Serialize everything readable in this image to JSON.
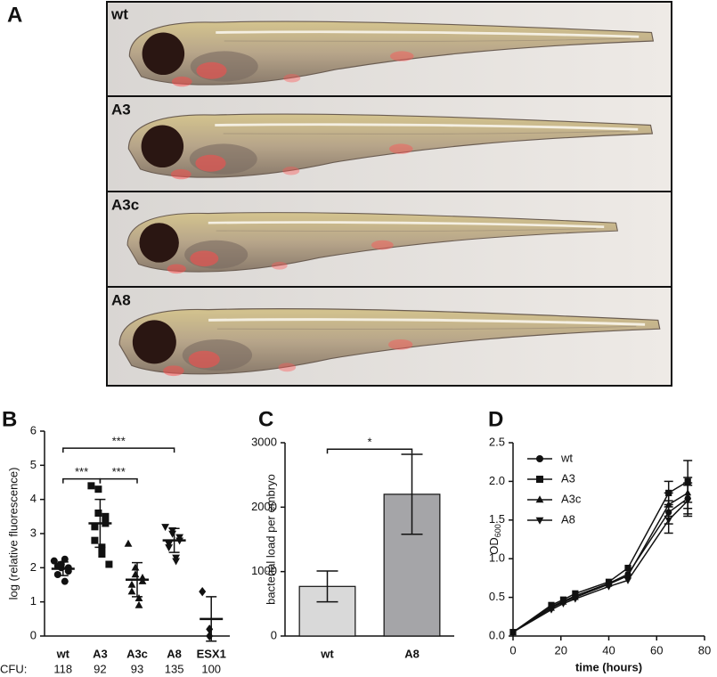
{
  "panel_labels": [
    "A",
    "B",
    "C",
    "D"
  ],
  "images": [
    {
      "label": "wt"
    },
    {
      "label": "A3"
    },
    {
      "label": "A3c"
    },
    {
      "label": "A8"
    }
  ],
  "chart_data": [
    {
      "type": "scatter",
      "ylabel": "log (relative fluorescence)",
      "categories": [
        "wt",
        "A3",
        "A3c",
        "A8",
        "ESX1"
      ],
      "markers": [
        "circle",
        "square",
        "triangle",
        "triangle-down",
        "diamond"
      ],
      "groups": [
        {
          "points": [
            2.2,
            2.1,
            2.0,
            1.9,
            2.0,
            1.8,
            2.05,
            1.6,
            2.25
          ],
          "mean": 1.97,
          "sd": 0.2
        },
        {
          "points": [
            4.4,
            4.3,
            3.6,
            3.5,
            3.3,
            3.2,
            2.8,
            2.6,
            2.4,
            2.1
          ],
          "mean": 3.3,
          "sd": 0.7
        },
        {
          "points": [
            2.7,
            2.0,
            1.8,
            1.7,
            1.6,
            1.5,
            1.3,
            1.1,
            0.9
          ],
          "mean": 1.65,
          "sd": 0.5
        },
        {
          "points": [
            3.2,
            3.1,
            3.0,
            2.9,
            2.8,
            2.7,
            2.6,
            2.3,
            2.2
          ],
          "mean": 2.8,
          "sd": 0.35
        },
        {
          "points": [
            1.3,
            0.2,
            0.0
          ],
          "mean": 0.5,
          "sd": 0.65
        }
      ],
      "ylim": [
        0,
        6
      ],
      "yticks": [
        0,
        1,
        2,
        3,
        4,
        5,
        6
      ],
      "brackets": [
        {
          "from": 0,
          "to": 3,
          "y": 5.5,
          "label": "***"
        },
        {
          "from": 0,
          "to": 1,
          "y": 4.6,
          "label": "***"
        },
        {
          "from": 1,
          "to": 2,
          "y": 4.6,
          "label": "***"
        }
      ],
      "cfu": {
        "label": "CFU:",
        "values": [
          118,
          92,
          93,
          135,
          100
        ]
      }
    },
    {
      "type": "bar",
      "ylabel": "bacterial load per embryo",
      "categories": [
        "wt",
        "A8"
      ],
      "values": [
        770,
        2200
      ],
      "errors": [
        240,
        620
      ],
      "colors": [
        "#d9d9d9",
        "#a5a5a8"
      ],
      "ylim": [
        0,
        3000
      ],
      "yticks": [
        0,
        1000,
        2000,
        3000
      ],
      "brackets": [
        {
          "from": 0,
          "to": 1,
          "y": 2900,
          "label": "*"
        }
      ]
    },
    {
      "type": "line",
      "xlabel": "time (hours)",
      "ylabel": {
        "main": "OD",
        "sub": "600"
      },
      "x": [
        0,
        16,
        21,
        26,
        40,
        48,
        65,
        73
      ],
      "series": [
        {
          "name": "wt",
          "marker": "circle",
          "values": [
            0.05,
            0.38,
            0.45,
            0.52,
            0.68,
            0.8,
            1.6,
            1.78
          ],
          "errors": [
            null,
            null,
            null,
            null,
            null,
            null,
            0.15,
            0.2
          ]
        },
        {
          "name": "A3",
          "marker": "square",
          "values": [
            0.05,
            0.4,
            0.47,
            0.55,
            0.7,
            0.88,
            1.85,
            2.0
          ],
          "errors": [
            null,
            null,
            null,
            null,
            null,
            null,
            0.15,
            0.27
          ]
        },
        {
          "name": "A3c",
          "marker": "triangle",
          "values": [
            0.05,
            0.36,
            0.44,
            0.5,
            0.67,
            0.78,
            1.7,
            1.85
          ],
          "errors": [
            null,
            null,
            null,
            null,
            null,
            null,
            0.15,
            0.2
          ]
        },
        {
          "name": "A8",
          "marker": "triangle-down",
          "values": [
            0.05,
            0.34,
            0.42,
            0.48,
            0.64,
            0.72,
            1.5,
            1.75
          ],
          "errors": [
            null,
            null,
            null,
            null,
            null,
            null,
            0.17,
            0.2
          ]
        }
      ],
      "xlim": [
        0,
        80
      ],
      "xticks": [
        0,
        20,
        40,
        60,
        80
      ],
      "ylim": [
        0,
        2.5
      ],
      "yticks": [
        {
          "value": 0,
          "label": "0.0"
        },
        {
          "value": 0.5,
          "label": "0.5"
        },
        {
          "value": 1,
          "label": "1.0"
        },
        {
          "value": 1.5,
          "label": "1.5"
        },
        {
          "value": 2,
          "label": "2.0"
        },
        {
          "value": 2.5,
          "label": "2.5"
        }
      ],
      "legend": "upper-left"
    }
  ]
}
